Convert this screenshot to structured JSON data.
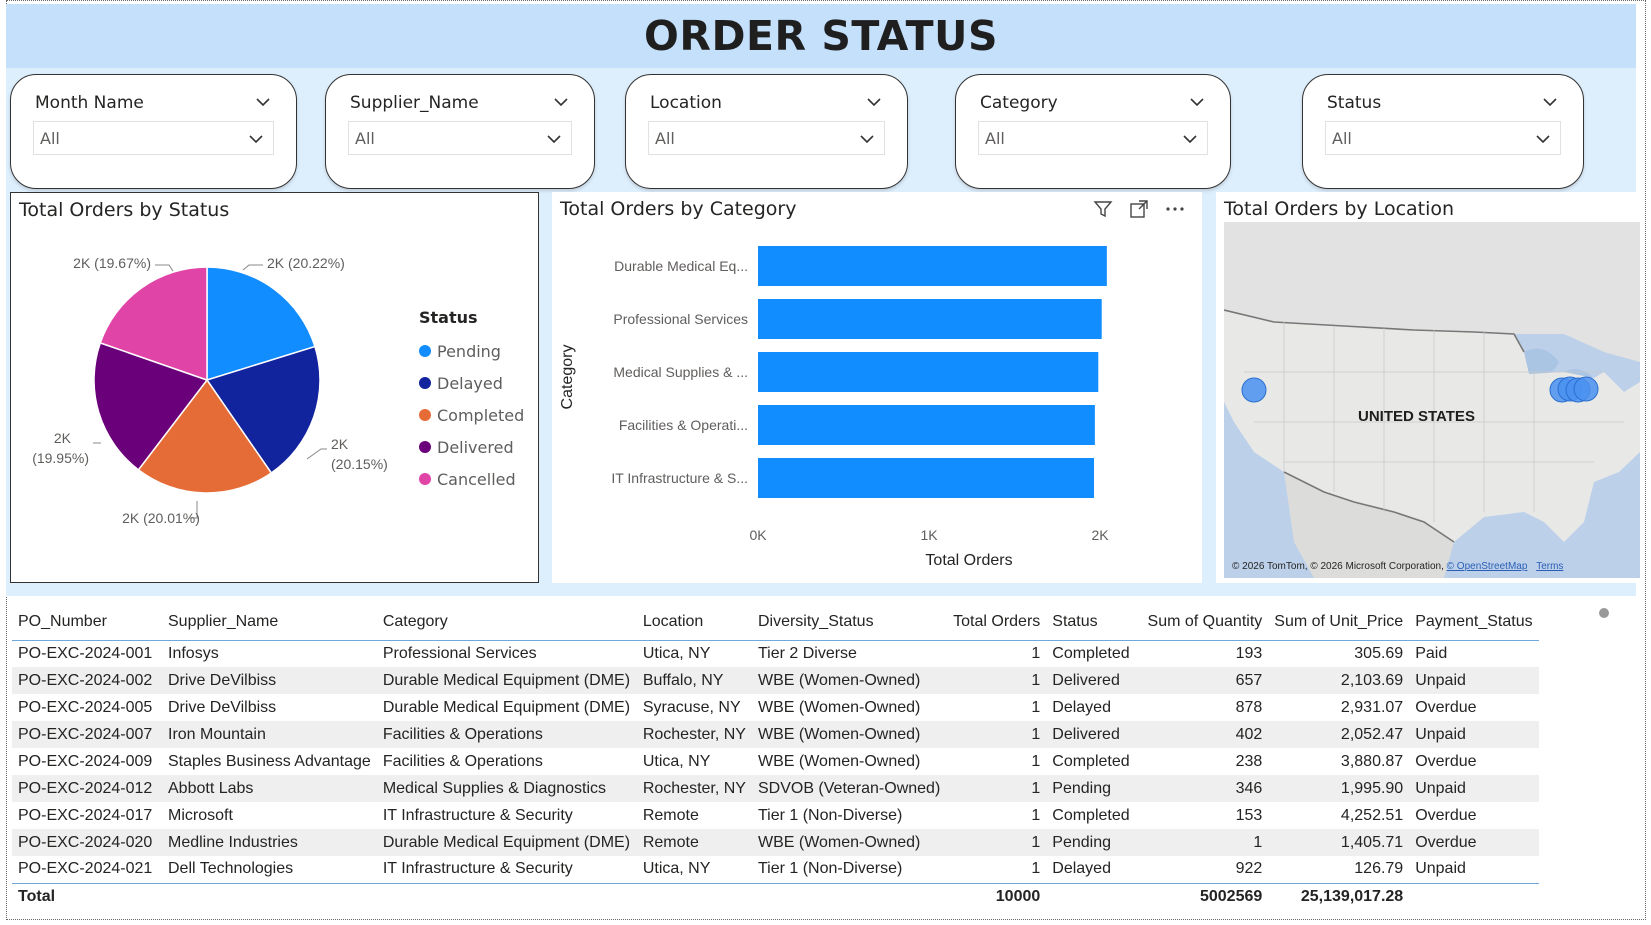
{
  "header": {
    "title": "ORDER STATUS"
  },
  "slicers": [
    {
      "label": "Month Name",
      "value": "All"
    },
    {
      "label": "Supplier_Name",
      "value": "All"
    },
    {
      "label": "Location",
      "value": "All"
    },
    {
      "label": "Category",
      "value": "All"
    },
    {
      "label": "Status",
      "value": "All"
    }
  ],
  "pie": {
    "title": "Total Orders by Status",
    "legend_title": "Status",
    "labels": [
      "2K (20.22%)",
      "2K (20.15%)",
      "2K (20.01%)",
      "2K (19.95%)",
      "2K (19.67%)"
    ]
  },
  "bar": {
    "title": "Total Orders by Category"
  },
  "map": {
    "title": "Total Orders by Location",
    "country_label": "UNITED STATES",
    "credit": "© 2026 TomTom, © 2026 Microsoft Corporation,",
    "osm": "© OpenStreetMap",
    "terms": "Terms",
    "bubble_color": "#4a90f0"
  },
  "chart_data": [
    {
      "type": "pie",
      "title": "Total Orders by Status",
      "legend_title": "Status",
      "slices": [
        {
          "name": "Pending",
          "percent": 20.22,
          "color": "#118dff"
        },
        {
          "name": "Delayed",
          "percent": 20.15,
          "color": "#12239e"
        },
        {
          "name": "Completed",
          "percent": 20.01,
          "color": "#e66c37"
        },
        {
          "name": "Delivered",
          "percent": 19.95,
          "color": "#6b007b"
        },
        {
          "name": "Cancelled",
          "percent": 19.67,
          "color": "#e044a7"
        }
      ]
    },
    {
      "type": "bar",
      "orientation": "horizontal",
      "title": "Total Orders by Category",
      "xlabel": "Total Orders",
      "ylabel": "Category",
      "categories": [
        "Durable Medical Eq...",
        "Professional Services",
        "Medical Supplies & ...",
        "Facilities & Operati...",
        "IT Infrastructure & S..."
      ],
      "values": [
        2040,
        2010,
        1990,
        1970,
        1965
      ],
      "xlim": [
        0,
        2000
      ],
      "xticks": [
        "0K",
        "1K",
        "2K"
      ],
      "color": "#118dff"
    }
  ],
  "table": {
    "columns": [
      "PO_Number",
      "Supplier_Name",
      "Category",
      "Location",
      "Diversity_Status",
      "Total Orders",
      "Status",
      "Sum of Quantity",
      "Sum of Unit_Price",
      "Payment_Status"
    ],
    "rows": [
      [
        "PO-EXC-2024-001",
        "Infosys",
        "Professional Services",
        "Utica, NY",
        "Tier 2 Diverse",
        "1",
        "Completed",
        "193",
        "305.69",
        "Paid"
      ],
      [
        "PO-EXC-2024-002",
        "Drive DeVilbiss",
        "Durable Medical Equipment (DME)",
        "Buffalo, NY",
        "WBE (Women-Owned)",
        "1",
        "Delivered",
        "657",
        "2,103.69",
        "Unpaid"
      ],
      [
        "PO-EXC-2024-005",
        "Drive DeVilbiss",
        "Durable Medical Equipment (DME)",
        "Syracuse, NY",
        "WBE (Women-Owned)",
        "1",
        "Delayed",
        "878",
        "2,931.07",
        "Overdue"
      ],
      [
        "PO-EXC-2024-007",
        "Iron Mountain",
        "Facilities & Operations",
        "Rochester, NY",
        "WBE (Women-Owned)",
        "1",
        "Delivered",
        "402",
        "2,052.47",
        "Unpaid"
      ],
      [
        "PO-EXC-2024-009",
        "Staples Business Advantage",
        "Facilities & Operations",
        "Utica, NY",
        "WBE (Women-Owned)",
        "1",
        "Completed",
        "238",
        "3,880.87",
        "Overdue"
      ],
      [
        "PO-EXC-2024-012",
        "Abbott Labs",
        "Medical Supplies & Diagnostics",
        "Rochester, NY",
        "SDVOB (Veteran-Owned)",
        "1",
        "Pending",
        "346",
        "1,995.90",
        "Unpaid"
      ],
      [
        "PO-EXC-2024-017",
        "Microsoft",
        "IT Infrastructure & Security",
        "Remote",
        "Tier 1 (Non-Diverse)",
        "1",
        "Completed",
        "153",
        "4,252.51",
        "Overdue"
      ],
      [
        "PO-EXC-2024-020",
        "Medline Industries",
        "Durable Medical Equipment (DME)",
        "Remote",
        "WBE (Women-Owned)",
        "1",
        "Pending",
        "1",
        "1,405.71",
        "Overdue"
      ],
      [
        "PO-EXC-2024-021",
        "Dell Technologies",
        "IT Infrastructure & Security",
        "Utica, NY",
        "Tier 1 (Non-Diverse)",
        "1",
        "Delayed",
        "922",
        "126.79",
        "Unpaid"
      ]
    ],
    "total": [
      "Total",
      "",
      "",
      "",
      "",
      "10000",
      "",
      "5002569",
      "25,139,017.28",
      ""
    ]
  }
}
